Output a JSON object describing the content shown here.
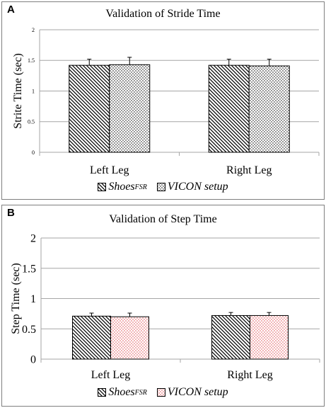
{
  "chart_data": [
    {
      "panel": "A",
      "type": "bar",
      "title": "Validation of Stride Time",
      "ylabel": "Strite Time (sec)",
      "xlabel": "",
      "categories": [
        "Left Leg",
        "Right Leg"
      ],
      "ylim": [
        0,
        2
      ],
      "yticks": [
        "0",
        "0.5",
        "1",
        "1.5",
        "2"
      ],
      "grid": true,
      "legend_position": "bottom",
      "series": [
        {
          "name": "Shoes",
          "name_sub": "FSR",
          "values": [
            1.42,
            1.42
          ],
          "errors": [
            0.1,
            0.1
          ],
          "pattern": "diagonal",
          "color": "#000000"
        },
        {
          "name": "VICON setup",
          "values": [
            1.43,
            1.41
          ],
          "errors": [
            0.12,
            0.11
          ],
          "pattern": "dots",
          "color": "#000000"
        }
      ]
    },
    {
      "panel": "B",
      "type": "bar",
      "title": "Validation of Step Time",
      "ylabel": "Step Time (sec)",
      "xlabel": "",
      "categories": [
        "Left Leg",
        "Right Leg"
      ],
      "ylim": [
        0,
        2
      ],
      "yticks": [
        "0",
        "0.5",
        "1",
        "1.5",
        "2"
      ],
      "grid": true,
      "legend_position": "bottom",
      "series": [
        {
          "name": "Shoes",
          "name_sub": "FSR",
          "values": [
            0.71,
            0.72
          ],
          "errors": [
            0.05,
            0.05
          ],
          "pattern": "diagonal",
          "color": "#000000"
        },
        {
          "name": "VICON setup",
          "values": [
            0.7,
            0.72
          ],
          "errors": [
            0.06,
            0.05
          ],
          "pattern": "dots",
          "color": "#e0454a"
        }
      ]
    }
  ]
}
